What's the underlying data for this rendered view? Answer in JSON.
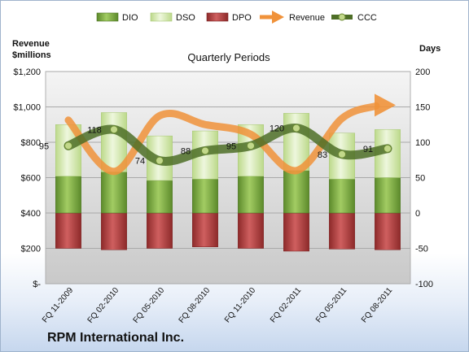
{
  "chart_data": {
    "type": "bar",
    "title": "Quarterly Periods",
    "footer": "RPM International Inc.",
    "y_left_label": [
      "Revenue",
      "$millions"
    ],
    "y_right_label": "Days",
    "categories": [
      "FQ 11-2009",
      "FQ 02-2010",
      "FQ 05-2010",
      "FQ 08-2010",
      "FQ 11-2010",
      "FQ 02-2011",
      "FQ 05-2011",
      "FQ 08-2011"
    ],
    "y_left_ticks": [
      "$-",
      "$200",
      "$400",
      "$600",
      "$800",
      "$1,000",
      "$1,200"
    ],
    "y_right_ticks": [
      "-100",
      "-50",
      "0",
      "50",
      "100",
      "150",
      "200"
    ],
    "y_left_range": [
      0,
      1200
    ],
    "y_right_range": [
      -100,
      200
    ],
    "legend_position": "top",
    "legend": [
      "DIO",
      "DSO",
      "DPO",
      "Revenue",
      "CCC"
    ],
    "colors": {
      "DIO": "#77a33a",
      "DSO": "#d6eab2",
      "DPO": "#b03a3a",
      "Revenue": "#f0923a",
      "CCC": "#5f7a2e"
    },
    "series": [
      {
        "name": "DIO",
        "axis": "right",
        "values": [
          52,
          58,
          46,
          48,
          52,
          60,
          48,
          50
        ]
      },
      {
        "name": "DSO",
        "axis": "right",
        "values": [
          73,
          84,
          63,
          68,
          73,
          81,
          65,
          68
        ]
      },
      {
        "name": "DPO",
        "axis": "right",
        "values": [
          -50,
          -52,
          -50,
          -48,
          -50,
          -54,
          -51,
          -52
        ]
      },
      {
        "name": "Revenue",
        "axis": "left",
        "values": [
          925,
          635,
          950,
          900,
          845,
          640,
          935,
          1010
        ]
      },
      {
        "name": "CCC",
        "axis": "right",
        "values": [
          95,
          118,
          74,
          88,
          95,
          120,
          83,
          91
        ]
      }
    ],
    "ccc_labels": [
      "95",
      "118",
      "74",
      "88",
      "95",
      "120",
      "83",
      "91"
    ]
  }
}
